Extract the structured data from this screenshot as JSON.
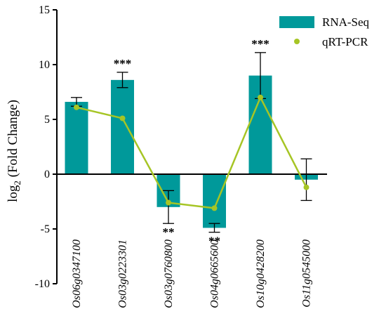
{
  "chart_data": {
    "type": "bar",
    "ylabel_main": "log",
    "ylabel_sub": "2",
    "ylabel_rest": " (Fold Change)",
    "ylim": [
      -10,
      15
    ],
    "yticks": [
      "-10",
      "-5",
      "0",
      "5",
      "10",
      "15"
    ],
    "categories": [
      "Os06g0347100",
      "Os03g0223301",
      "Os03g0760800",
      "Os04g0665600",
      "Os10g0428200",
      "Os11g0545000"
    ],
    "series": [
      {
        "name": "RNA-Seq",
        "kind": "bar",
        "color": "#00999a",
        "values": [
          6.6,
          8.6,
          -3.0,
          -4.9,
          9.0,
          -0.5
        ],
        "error": [
          0.4,
          0.7,
          1.5,
          0.4,
          2.1,
          1.9
        ]
      },
      {
        "name": "qRT-PCR",
        "kind": "line",
        "color": "#a6c525",
        "values": [
          6.1,
          5.1,
          -2.6,
          -3.1,
          7.0,
          -1.2
        ]
      }
    ],
    "significance": [
      {
        "category": "Os03g0223301",
        "label": "***",
        "position": "above"
      },
      {
        "category": "Os03g0760800",
        "label": "**",
        "position": "below"
      },
      {
        "category": "Os04g0665600",
        "label": "**",
        "position": "below"
      },
      {
        "category": "Os10g0428200",
        "label": "***",
        "position": "above"
      }
    ],
    "legend_position": "top-right",
    "grid": false
  }
}
